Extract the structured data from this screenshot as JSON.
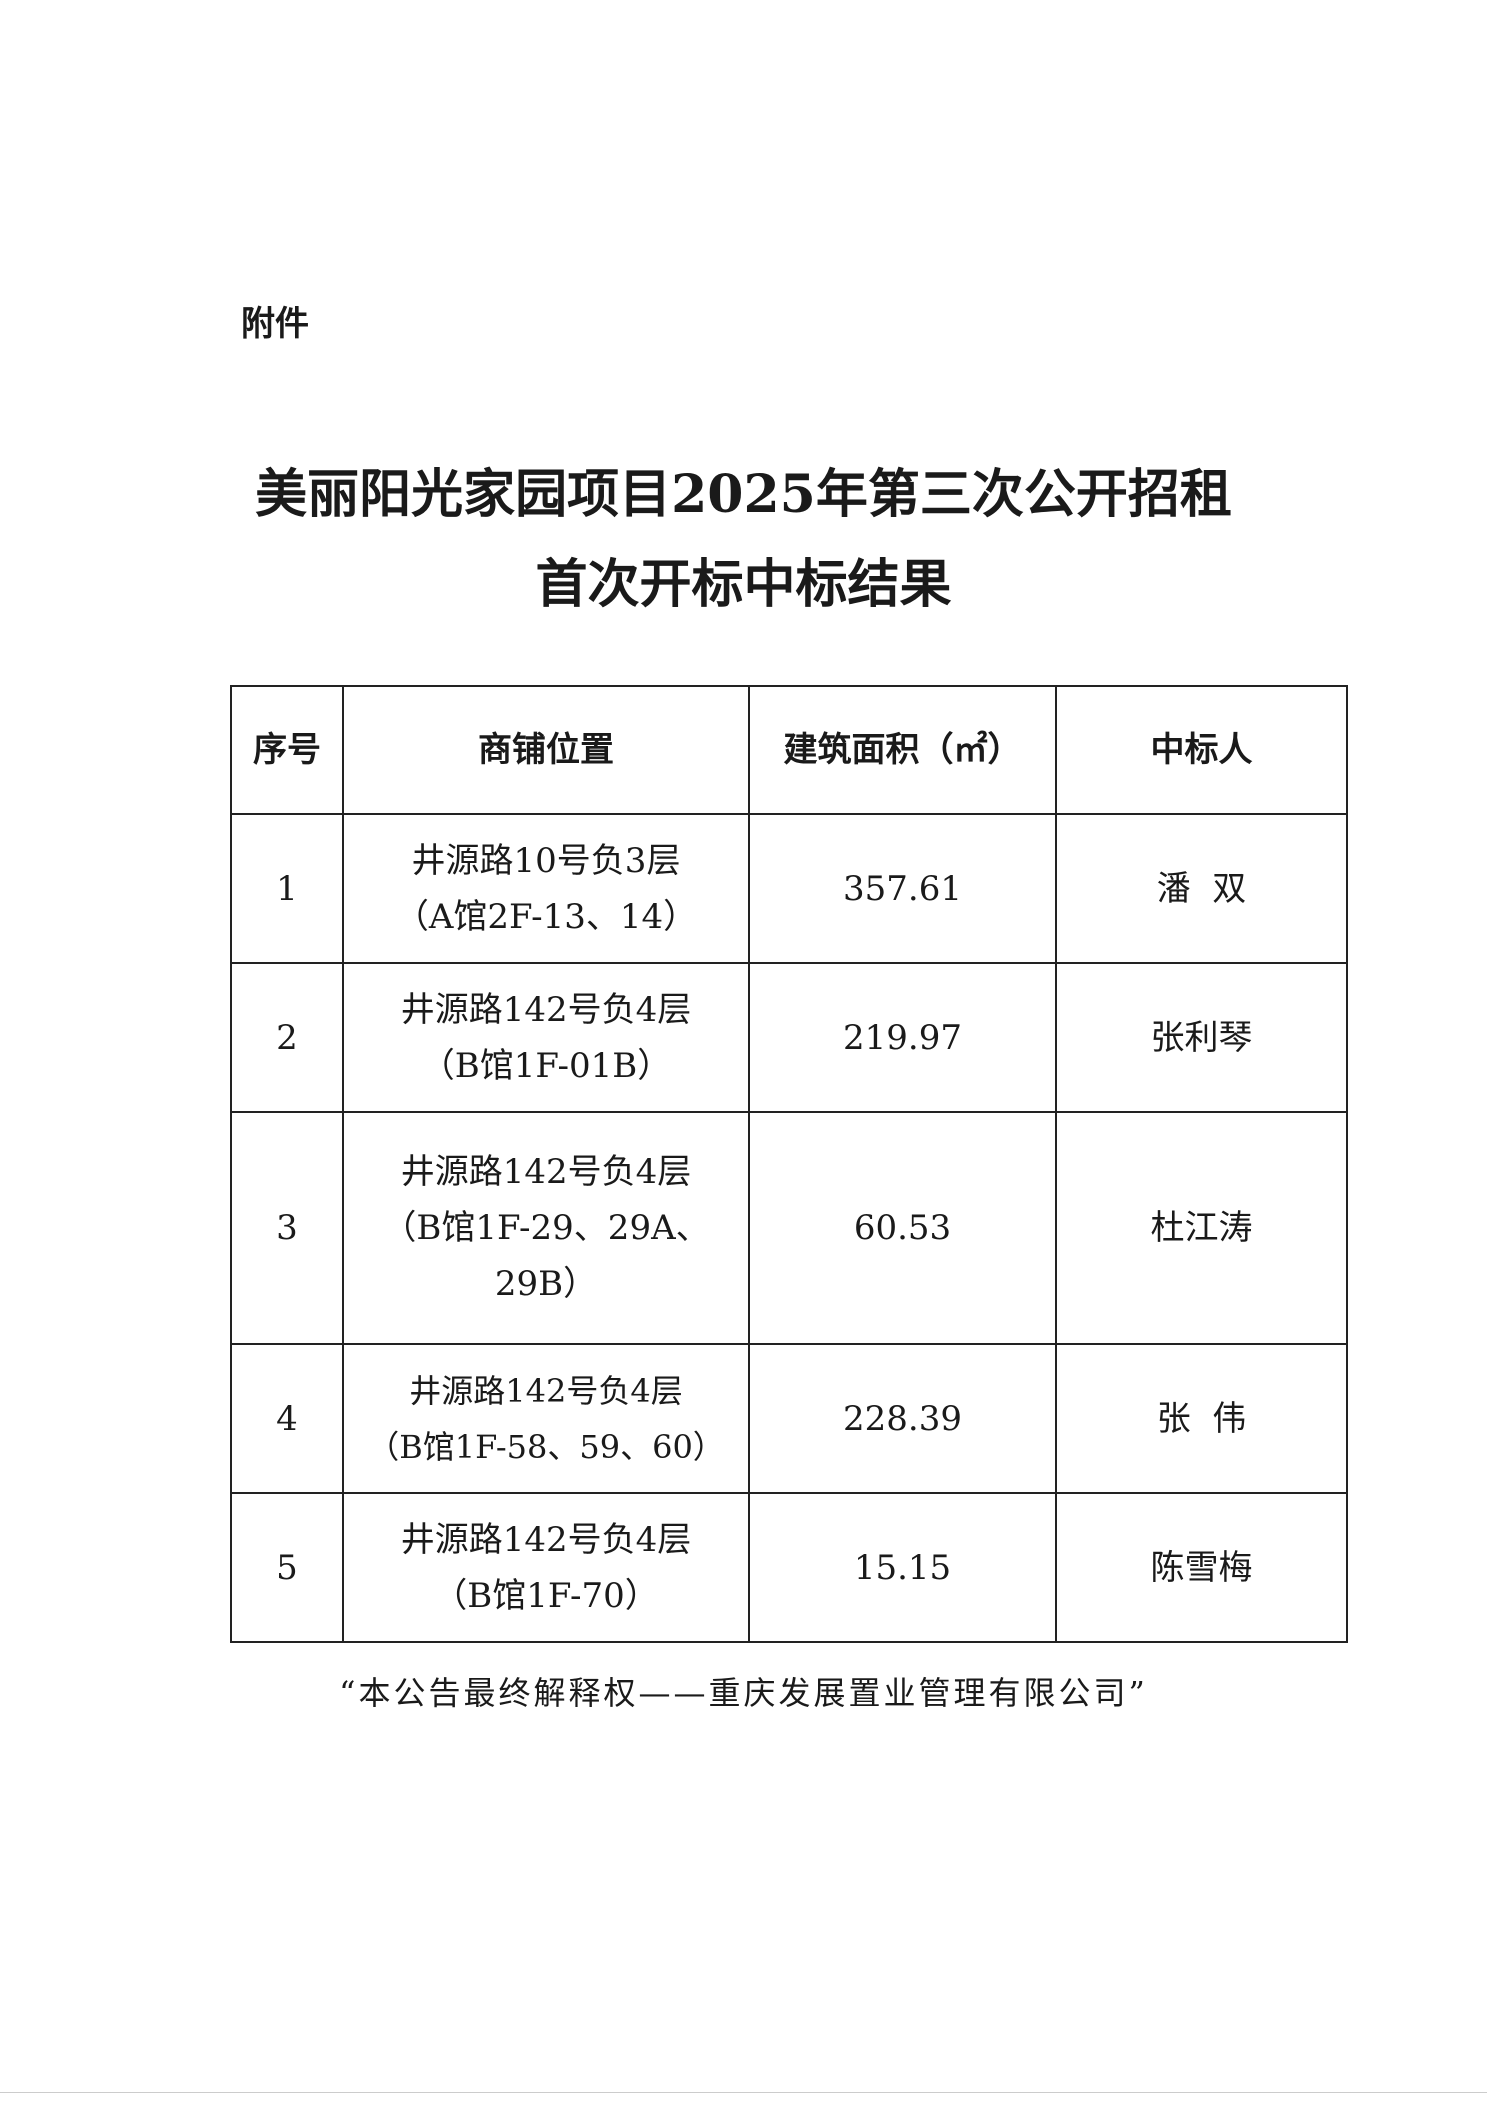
{
  "attachment_label": "附件",
  "title": {
    "line1": "美丽阳光家园项目2025年第三次公开招租",
    "line2": "首次开标中标结果"
  },
  "table": {
    "headers": [
      "序号",
      "商铺位置",
      "建筑面积（㎡）",
      "中标人"
    ],
    "rows": [
      {
        "no": "1",
        "location_line1": "井源路10号负3层",
        "location_line2": "（A馆2F-13、14）",
        "area": "357.61",
        "winner": "潘  双"
      },
      {
        "no": "2",
        "location_line1": "井源路142号负4层",
        "location_line2": "（B馆1F-01B）",
        "area": "219.97",
        "winner": "张利琴"
      },
      {
        "no": "3",
        "location_line1": "井源路142号负4层",
        "location_line2": "（B馆1F-29、29A、29B）",
        "area": "60.53",
        "winner": "杜江涛"
      },
      {
        "no": "4",
        "location_line1": "井源路142号负4层",
        "location_line2": "（B馆1F-58、59、60）",
        "area": "228.39",
        "winner": "张  伟"
      },
      {
        "no": "5",
        "location_line1": "井源路142号负4层",
        "location_line2": "（B馆1F-70）",
        "area": "15.15",
        "winner": "陈雪梅"
      }
    ]
  },
  "footer": "“本公告最终解释权——重庆发展置业管理有限公司”"
}
